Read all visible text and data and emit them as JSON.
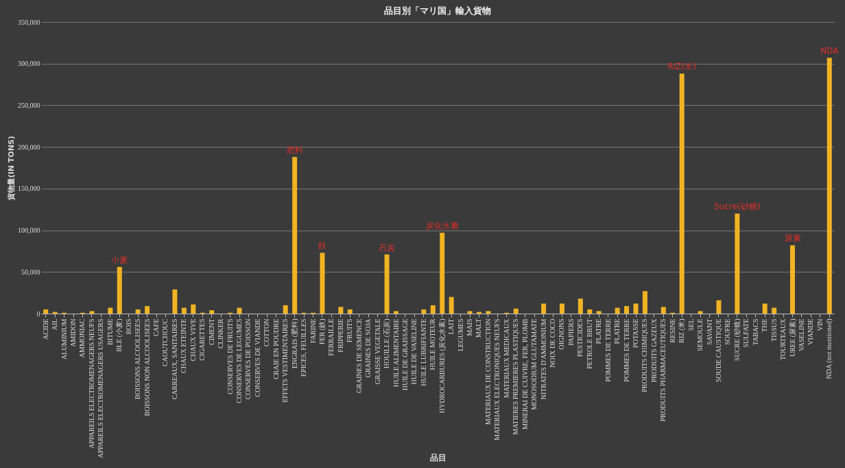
{
  "chart_data": {
    "type": "bar",
    "title": "品目別「マリ国」輸入貨物",
    "xlabel": "品目",
    "ylabel": "貨物量(IN TONS)",
    "categories": [
      "ACIDE",
      "AIL",
      "ALUMINIUM",
      "AMIDON",
      "AMMONIAC",
      "APPAREILS ELECTROMENAGERS NEUFS",
      "APPAREILS ELECTROMENAGERS USAGERS",
      "BITUME",
      "BLE (小麦)",
      "BOIS",
      "BOISSONS ALCOOLISEES",
      "BOISSONS NON ALCOOLISEES",
      "CAFE",
      "CAOUTCHOUC",
      "CARREAUX, SANITAIRES",
      "CHAUX ETEINTE",
      "CHAUX VIVE",
      "CIGARETTES",
      "CIMENT",
      "CLINKER",
      "CONSERVES DE FRUITS",
      "CONSERVES DE LEGUMES",
      "CONSERVES DE POISSON",
      "CONSERVES DE VIANDE",
      "COTTON",
      "CRAIE EN POUDRE",
      "EFFETS VESTIMENTAIRES",
      "ENGRAIS (肥料)",
      "EPICES, FEUILLES",
      "FARINE",
      "FER (鉄)",
      "FERRAILLE",
      "FRIPPERIE",
      "FRUITS",
      "GRAINES DE SEMENCE",
      "GRAINES DE SOJA",
      "GRAISSE VEGETALE",
      "HOUILLE (石炭)",
      "HUILE ALIMENTAIRE",
      "HUILE DE GRAISSAGE",
      "HUILE DE VASELINE",
      "HUILE LUBRIFIANTE",
      "HUILE MOTEUR",
      "HYDROCARBURES (炭化水素)",
      "LAIT",
      "LEGUMES",
      "MAIS",
      "MALT",
      "MATERIAUX DE CONSTRUCTION",
      "MATERIAUX ELECTRONIQUES NEUFS",
      "MATERIAUX MEDICAUX",
      "MATIERES PREMIERES PLASTIQUES",
      "MINERAI DE CUIVRE, FER, PLOMB",
      "MONOSODIUM GLUTAMATE",
      "NITRATES D'AMMONIUM",
      "NOIX DE COCO",
      "OIGNONS",
      "PAPIERS",
      "PESTICIDES",
      "PETROLE BRUT",
      "PLATRE",
      "POMMES DE TERRE",
      "PLATRE",
      "POMMES DE TERRE",
      "POTASSE",
      "PRODUITS CHIMIQUES",
      "PRODUITS GAZEUX",
      "PRODUITS PHARMACEUTIQUES",
      "RESINE",
      "RIZ (米)",
      "SEL",
      "SEMOULE",
      "SAVANT",
      "SOUDE CAUSTIQUE",
      "SOUFRE",
      "SUCRE (砂糖)",
      "SULFATE",
      "TABACS",
      "THE",
      "TISSUS",
      "TOURTEAUX",
      "UREE (尿素)",
      "VASELINE",
      "VIANDE",
      "VIN",
      "NDA (not mentioned)"
    ],
    "values": [
      5000,
      2000,
      1000,
      0,
      1000,
      3000,
      0,
      7000,
      56000,
      0,
      5000,
      9000,
      0,
      0,
      29000,
      7000,
      11000,
      1000,
      4000,
      0,
      1000,
      7000,
      0,
      0,
      0,
      0,
      10000,
      188000,
      1000,
      1000,
      73000,
      0,
      8000,
      5000,
      0,
      0,
      0,
      71000,
      3000,
      0,
      0,
      5000,
      10000,
      97000,
      20000,
      0,
      3000,
      2000,
      3000,
      0,
      1000,
      6000,
      0,
      0,
      12000,
      0,
      12000,
      0,
      18000,
      5000,
      3000,
      0,
      7000,
      9000,
      12000,
      27000,
      0,
      8000,
      1000,
      288000,
      0,
      3000,
      0,
      16000,
      0,
      120000,
      0,
      0,
      12000,
      7000,
      0,
      82000,
      0,
      0,
      0,
      307000
    ],
    "color": "#f0b323",
    "ylim": [
      0,
      350000
    ],
    "yticks": [
      {
        "value": 0,
        "label": "0"
      },
      {
        "value": 50000,
        "label": "50,000"
      },
      {
        "value": 100000,
        "label": "100,000"
      },
      {
        "value": 150000,
        "label": "150,000"
      },
      {
        "value": 200000,
        "label": "200,000"
      },
      {
        "value": 250000,
        "label": "250,000"
      },
      {
        "value": 300000,
        "label": "300,000"
      },
      {
        "value": 350000,
        "label": "350,000"
      }
    ],
    "grid": "y",
    "annotations": [
      {
        "text": "小麦",
        "x": "BLE (小麦)",
        "y": 56000
      },
      {
        "text": "肥料",
        "x": "ENGRAIS (肥料)",
        "y": 188000
      },
      {
        "text": "鉄",
        "x": "FER (鉄)",
        "y": 73000
      },
      {
        "text": "石炭",
        "x": "HOUILLE (石炭)",
        "y": 71000
      },
      {
        "text": "炭化水素",
        "x": "HYDROCARBURES (炭化水素)",
        "y": 97000
      },
      {
        "text": "RIZ(米)",
        "x": "RIZ (米)",
        "y": 288000
      },
      {
        "text": "Sucre(砂糖)",
        "x": "SUCRE (砂糖)",
        "y": 120000
      },
      {
        "text": "尿素",
        "x": "UREE (尿素)",
        "y": 82000
      },
      {
        "text": "NDA",
        "x": "NDA (not mentioned)",
        "y": 307000
      }
    ]
  }
}
